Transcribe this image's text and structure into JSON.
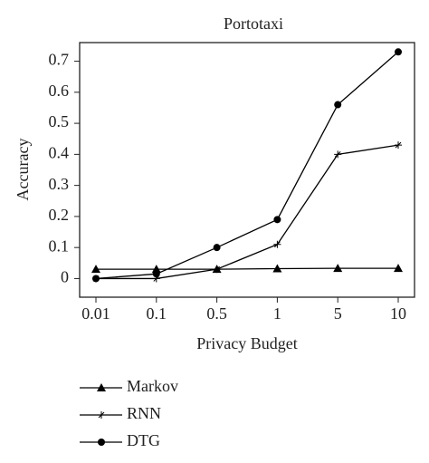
{
  "chart_data": {
    "type": "line",
    "title": "Portotaxi",
    "x_label": "Privacy Budget",
    "y_label": "Accuracy",
    "categories": [
      "0.01",
      "0.1",
      "0.5",
      "1",
      "5",
      "10"
    ],
    "series": [
      {
        "name": "Markov",
        "color": "#000000",
        "marker": "triangle",
        "values": [
          0.03,
          0.03,
          0.03,
          0.032,
          0.033,
          0.033
        ]
      },
      {
        "name": "RNN",
        "color": "#000000",
        "marker": "star",
        "values": [
          0,
          0,
          0.03,
          0.11,
          0.4,
          0.43
        ]
      },
      {
        "name": "DTG",
        "color": "#000000",
        "marker": "circle",
        "values": [
          0,
          0.015,
          0.1,
          0.19,
          0.56,
          0.73
        ]
      }
    ],
    "ylim": [
      -0.06,
      0.76
    ],
    "yticks": [
      0,
      0.1,
      0.2,
      0.3,
      0.4,
      0.5,
      0.6,
      0.7
    ],
    "legend": "bottom"
  }
}
